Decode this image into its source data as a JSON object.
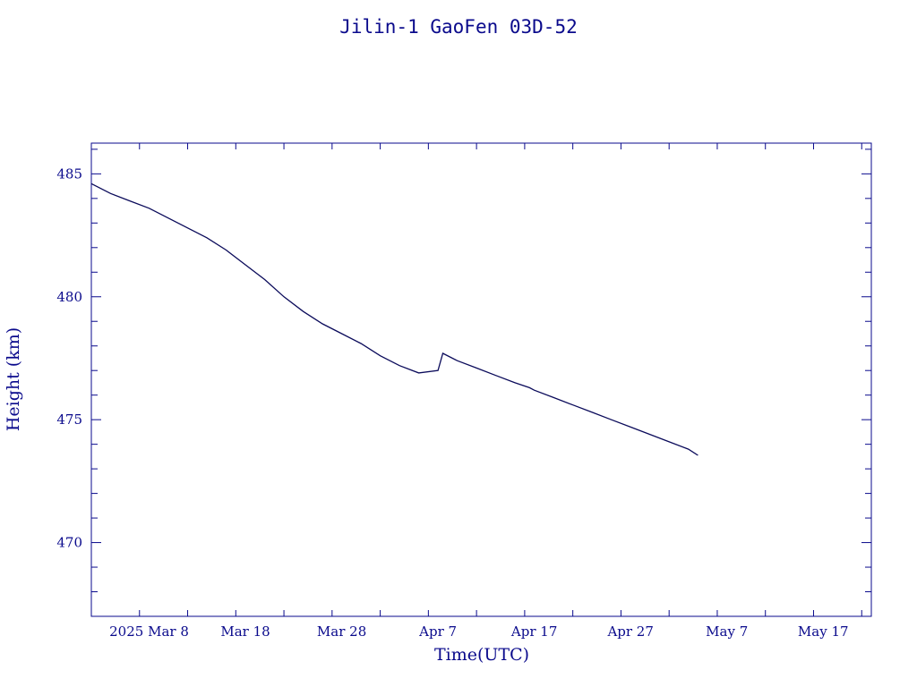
{
  "chart_data": {
    "type": "line",
    "title": "Jilin-1 GaoFen 03D-52",
    "xlabel": "Time(UTC)",
    "ylabel": "Height (km)",
    "ylim": [
      467,
      486.25
    ],
    "xlim": [
      "2025-03-02",
      "2025-05-22"
    ],
    "x_tick_labels": [
      "2025 Mar  8",
      "Mar 18",
      "Mar 28",
      "Apr  7",
      "Apr 17",
      "Apr 27",
      "May  7",
      "May 17"
    ],
    "x_tick_dates": [
      "2025-03-08",
      "2025-03-18",
      "2025-03-28",
      "2025-04-07",
      "2025-04-17",
      "2025-04-27",
      "2025-05-07",
      "2025-05-17"
    ],
    "y_tick_values": [
      470,
      475,
      480,
      485
    ],
    "grid": false,
    "series": [
      {
        "color": "#0a0a5a",
        "x": [
          "2025-03-02",
          "2025-03-04",
          "2025-03-06",
          "2025-03-08",
          "2025-03-10",
          "2025-03-12",
          "2025-03-14",
          "2025-03-16",
          "2025-03-18",
          "2025-03-20",
          "2025-03-22",
          "2025-03-24",
          "2025-03-26",
          "2025-03-28",
          "2025-03-30",
          "2025-04-01",
          "2025-04-03",
          "2025-04-05",
          "2025-04-07",
          "2025-04-07T12:00",
          "2025-04-09",
          "2025-04-11",
          "2025-04-13",
          "2025-04-15",
          "2025-04-16T12:00",
          "2025-04-17",
          "2025-04-19",
          "2025-04-21",
          "2025-04-23",
          "2025-04-25",
          "2025-04-27",
          "2025-04-29",
          "2025-05-01",
          "2025-05-03",
          "2025-05-04"
        ],
        "y": [
          484.6,
          484.2,
          483.9,
          483.6,
          483.2,
          482.8,
          482.4,
          481.9,
          481.3,
          480.7,
          480.0,
          479.4,
          478.9,
          478.5,
          478.1,
          477.6,
          477.2,
          476.9,
          477.0,
          477.7,
          477.4,
          477.1,
          476.8,
          476.5,
          476.3,
          476.2,
          475.9,
          475.6,
          475.3,
          475.0,
          474.7,
          474.4,
          474.1,
          473.8,
          473.55
        ]
      }
    ]
  }
}
